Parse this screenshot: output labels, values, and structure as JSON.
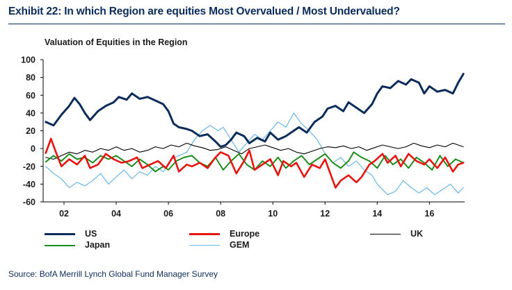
{
  "header": {
    "exhibit_title": "Exhibit 22: In which Region are equities Most Overvalued / Most Undervalued?"
  },
  "footer": {
    "source": "Source: BofA Merrill Lynch Global Fund Manager Survey"
  },
  "chart_data": {
    "type": "line",
    "title": "Valuation of Equities in the Region",
    "xlabel": "",
    "ylabel": "",
    "xlim": [
      2001.2,
      2017.35
    ],
    "ylim": [
      -60,
      100
    ],
    "yticks": [
      "100",
      "80",
      "60",
      "40",
      "20",
      "0",
      "-20",
      "-40",
      "-60"
    ],
    "xticks": [
      {
        "label": "02",
        "value": 2002
      },
      {
        "label": "04",
        "value": 2004
      },
      {
        "label": "06",
        "value": 2006
      },
      {
        "label": "08",
        "value": 2008
      },
      {
        "label": "10",
        "value": 2010
      },
      {
        "label": "12",
        "value": 2012
      },
      {
        "label": "14",
        "value": 2014
      },
      {
        "label": "16",
        "value": 2016
      }
    ],
    "grid": false,
    "legend_position": "bottom",
    "series": [
      {
        "name": "US",
        "color": "#0b2c5a",
        "points": [
          [
            2001.3,
            30
          ],
          [
            2001.6,
            26
          ],
          [
            2001.9,
            38
          ],
          [
            2002.2,
            48
          ],
          [
            2002.4,
            57
          ],
          [
            2002.6,
            50
          ],
          [
            2002.8,
            40
          ],
          [
            2003.0,
            32
          ],
          [
            2003.3,
            42
          ],
          [
            2003.6,
            48
          ],
          [
            2003.9,
            52
          ],
          [
            2004.1,
            58
          ],
          [
            2004.4,
            55
          ],
          [
            2004.6,
            62
          ],
          [
            2004.9,
            56
          ],
          [
            2005.2,
            58
          ],
          [
            2005.5,
            54
          ],
          [
            2005.8,
            50
          ],
          [
            2006.0,
            42
          ],
          [
            2006.2,
            28
          ],
          [
            2006.4,
            24
          ],
          [
            2006.7,
            22
          ],
          [
            2006.9,
            20
          ],
          [
            2007.2,
            14
          ],
          [
            2007.5,
            16
          ],
          [
            2007.8,
            8
          ],
          [
            2008.0,
            2
          ],
          [
            2008.2,
            4
          ],
          [
            2008.4,
            10
          ],
          [
            2008.6,
            18
          ],
          [
            2008.9,
            14
          ],
          [
            2009.1,
            6
          ],
          [
            2009.4,
            12
          ],
          [
            2009.7,
            8
          ],
          [
            2009.9,
            18
          ],
          [
            2010.2,
            10
          ],
          [
            2010.5,
            14
          ],
          [
            2010.8,
            20
          ],
          [
            2011.0,
            24
          ],
          [
            2011.3,
            18
          ],
          [
            2011.6,
            30
          ],
          [
            2011.9,
            36
          ],
          [
            2012.1,
            45
          ],
          [
            2012.4,
            48
          ],
          [
            2012.7,
            42
          ],
          [
            2012.9,
            52
          ],
          [
            2013.2,
            46
          ],
          [
            2013.5,
            40
          ],
          [
            2013.8,
            50
          ],
          [
            2014.0,
            62
          ],
          [
            2014.2,
            70
          ],
          [
            2014.5,
            68
          ],
          [
            2014.8,
            76
          ],
          [
            2015.1,
            72
          ],
          [
            2015.3,
            78
          ],
          [
            2015.6,
            74
          ],
          [
            2015.8,
            62
          ],
          [
            2016.0,
            70
          ],
          [
            2016.3,
            64
          ],
          [
            2016.6,
            66
          ],
          [
            2016.9,
            62
          ],
          [
            2017.1,
            74
          ],
          [
            2017.3,
            84
          ]
        ]
      },
      {
        "name": "Europe",
        "color": "#e8140f",
        "points": [
          [
            2001.3,
            -5
          ],
          [
            2001.5,
            11
          ],
          [
            2001.7,
            -5
          ],
          [
            2001.9,
            -20
          ],
          [
            2002.2,
            -12
          ],
          [
            2002.5,
            -18
          ],
          [
            2002.8,
            -8
          ],
          [
            2003.0,
            -22
          ],
          [
            2003.3,
            -18
          ],
          [
            2003.6,
            -6
          ],
          [
            2003.9,
            -12
          ],
          [
            2004.2,
            -16
          ],
          [
            2004.5,
            -14
          ],
          [
            2004.8,
            -10
          ],
          [
            2005.0,
            -22
          ],
          [
            2005.3,
            -18
          ],
          [
            2005.6,
            -14
          ],
          [
            2005.9,
            -22
          ],
          [
            2006.2,
            -8
          ],
          [
            2006.4,
            -26
          ],
          [
            2006.7,
            -18
          ],
          [
            2006.9,
            -20
          ],
          [
            2007.2,
            -16
          ],
          [
            2007.5,
            -22
          ],
          [
            2007.8,
            -10
          ],
          [
            2008.0,
            -4
          ],
          [
            2008.3,
            -8
          ],
          [
            2008.6,
            -28
          ],
          [
            2008.9,
            -14
          ],
          [
            2009.1,
            -2
          ],
          [
            2009.3,
            -24
          ],
          [
            2009.6,
            -18
          ],
          [
            2009.9,
            -12
          ],
          [
            2010.2,
            -30
          ],
          [
            2010.4,
            -14
          ],
          [
            2010.7,
            -20
          ],
          [
            2010.9,
            -16
          ],
          [
            2011.2,
            -32
          ],
          [
            2011.5,
            -18
          ],
          [
            2011.8,
            -22
          ],
          [
            2012.0,
            -12
          ],
          [
            2012.2,
            -28
          ],
          [
            2012.4,
            -44
          ],
          [
            2012.6,
            -36
          ],
          [
            2012.9,
            -30
          ],
          [
            2013.2,
            -38
          ],
          [
            2013.4,
            -32
          ],
          [
            2013.7,
            -18
          ],
          [
            2013.9,
            -14
          ],
          [
            2014.2,
            -6
          ],
          [
            2014.4,
            -16
          ],
          [
            2014.7,
            -8
          ],
          [
            2014.9,
            -20
          ],
          [
            2015.2,
            -6
          ],
          [
            2015.5,
            -14
          ],
          [
            2015.8,
            -18
          ],
          [
            2016.0,
            -12
          ],
          [
            2016.3,
            -22
          ],
          [
            2016.6,
            -10
          ],
          [
            2016.9,
            -26
          ],
          [
            2017.1,
            -18
          ],
          [
            2017.3,
            -16
          ]
        ]
      },
      {
        "name": "UK",
        "color": "#000000",
        "points": [
          [
            2001.3,
            -10
          ],
          [
            2001.6,
            -12
          ],
          [
            2001.9,
            -8
          ],
          [
            2002.2,
            -4
          ],
          [
            2002.5,
            -6
          ],
          [
            2002.8,
            -2
          ],
          [
            2003.1,
            -4
          ],
          [
            2003.4,
            0
          ],
          [
            2003.7,
            -2
          ],
          [
            2004.0,
            2
          ],
          [
            2004.3,
            -2
          ],
          [
            2004.6,
            0
          ],
          [
            2004.9,
            -4
          ],
          [
            2005.2,
            -2
          ],
          [
            2005.5,
            2
          ],
          [
            2005.8,
            0
          ],
          [
            2006.1,
            4
          ],
          [
            2006.4,
            2
          ],
          [
            2006.7,
            6
          ],
          [
            2007.0,
            3
          ],
          [
            2007.3,
            1
          ],
          [
            2007.6,
            -2
          ],
          [
            2007.9,
            -1
          ],
          [
            2008.2,
            2
          ],
          [
            2008.5,
            -2
          ],
          [
            2008.8,
            -6
          ],
          [
            2009.1,
            0
          ],
          [
            2009.4,
            2
          ],
          [
            2009.7,
            4
          ],
          [
            2010.0,
            1
          ],
          [
            2010.3,
            -2
          ],
          [
            2010.6,
            0
          ],
          [
            2010.9,
            -4
          ],
          [
            2011.2,
            -6
          ],
          [
            2011.5,
            -3
          ],
          [
            2011.8,
            0
          ],
          [
            2012.1,
            2
          ],
          [
            2012.4,
            1
          ],
          [
            2012.7,
            3
          ],
          [
            2013.0,
            0
          ],
          [
            2013.3,
            2
          ],
          [
            2013.6,
            -2
          ],
          [
            2013.9,
            1
          ],
          [
            2014.2,
            4
          ],
          [
            2014.5,
            2
          ],
          [
            2014.8,
            0
          ],
          [
            2015.1,
            2
          ],
          [
            2015.4,
            6
          ],
          [
            2015.7,
            3
          ],
          [
            2016.0,
            1
          ],
          [
            2016.3,
            4
          ],
          [
            2016.6,
            2
          ],
          [
            2016.9,
            6
          ],
          [
            2017.1,
            4
          ],
          [
            2017.3,
            2
          ]
        ]
      },
      {
        "name": "Japan",
        "color": "#1a8c1a",
        "points": [
          [
            2001.3,
            -15
          ],
          [
            2001.6,
            -8
          ],
          [
            2001.9,
            -14
          ],
          [
            2002.2,
            -6
          ],
          [
            2002.5,
            -12
          ],
          [
            2002.8,
            -10
          ],
          [
            2003.1,
            -16
          ],
          [
            2003.4,
            -8
          ],
          [
            2003.7,
            -12
          ],
          [
            2004.0,
            -8
          ],
          [
            2004.3,
            -14
          ],
          [
            2004.6,
            -20
          ],
          [
            2004.9,
            -12
          ],
          [
            2005.2,
            -18
          ],
          [
            2005.5,
            -26
          ],
          [
            2005.8,
            -20
          ],
          [
            2006.0,
            -24
          ],
          [
            2006.3,
            -14
          ],
          [
            2006.6,
            -10
          ],
          [
            2006.9,
            -8
          ],
          [
            2007.2,
            -16
          ],
          [
            2007.5,
            -20
          ],
          [
            2007.8,
            -10
          ],
          [
            2008.1,
            -24
          ],
          [
            2008.4,
            -14
          ],
          [
            2008.7,
            -6
          ],
          [
            2009.0,
            -18
          ],
          [
            2009.3,
            -24
          ],
          [
            2009.6,
            -14
          ],
          [
            2009.9,
            -20
          ],
          [
            2010.2,
            -10
          ],
          [
            2010.5,
            -22
          ],
          [
            2010.8,
            -14
          ],
          [
            2011.1,
            -8
          ],
          [
            2011.4,
            -18
          ],
          [
            2011.7,
            -12
          ],
          [
            2012.0,
            -6
          ],
          [
            2012.3,
            -16
          ],
          [
            2012.6,
            -22
          ],
          [
            2012.9,
            -14
          ],
          [
            2013.1,
            -4
          ],
          [
            2013.4,
            -10
          ],
          [
            2013.7,
            -14
          ],
          [
            2014.0,
            -22
          ],
          [
            2014.3,
            -8
          ],
          [
            2014.6,
            -18
          ],
          [
            2014.9,
            -12
          ],
          [
            2015.2,
            -22
          ],
          [
            2015.5,
            -10
          ],
          [
            2015.8,
            -16
          ],
          [
            2016.1,
            -24
          ],
          [
            2016.4,
            -8
          ],
          [
            2016.7,
            -20
          ],
          [
            2017.0,
            -12
          ],
          [
            2017.3,
            -16
          ]
        ]
      },
      {
        "name": "GEM",
        "color": "#6bb6e6",
        "points": [
          [
            2001.3,
            -20
          ],
          [
            2001.6,
            -28
          ],
          [
            2001.9,
            -34
          ],
          [
            2002.2,
            -44
          ],
          [
            2002.5,
            -38
          ],
          [
            2002.8,
            -42
          ],
          [
            2003.1,
            -36
          ],
          [
            2003.4,
            -28
          ],
          [
            2003.7,
            -40
          ],
          [
            2004.0,
            -32
          ],
          [
            2004.3,
            -24
          ],
          [
            2004.6,
            -34
          ],
          [
            2004.9,
            -26
          ],
          [
            2005.2,
            -30
          ],
          [
            2005.5,
            -20
          ],
          [
            2005.8,
            -26
          ],
          [
            2006.1,
            -12
          ],
          [
            2006.4,
            -8
          ],
          [
            2006.7,
            -4
          ],
          [
            2007.0,
            10
          ],
          [
            2007.3,
            20
          ],
          [
            2007.6,
            26
          ],
          [
            2007.9,
            20
          ],
          [
            2008.1,
            24
          ],
          [
            2008.4,
            10
          ],
          [
            2008.7,
            -4
          ],
          [
            2009.0,
            6
          ],
          [
            2009.3,
            16
          ],
          [
            2009.6,
            10
          ],
          [
            2009.9,
            20
          ],
          [
            2010.2,
            30
          ],
          [
            2010.5,
            24
          ],
          [
            2010.8,
            40
          ],
          [
            2011.1,
            28
          ],
          [
            2011.4,
            20
          ],
          [
            2011.7,
            10
          ],
          [
            2012.0,
            -6
          ],
          [
            2012.3,
            -16
          ],
          [
            2012.6,
            -10
          ],
          [
            2012.9,
            -20
          ],
          [
            2013.2,
            -14
          ],
          [
            2013.5,
            -24
          ],
          [
            2013.8,
            -30
          ],
          [
            2014.0,
            -40
          ],
          [
            2014.2,
            -46
          ],
          [
            2014.4,
            -52
          ],
          [
            2014.7,
            -48
          ],
          [
            2015.0,
            -36
          ],
          [
            2015.3,
            -44
          ],
          [
            2015.6,
            -50
          ],
          [
            2015.9,
            -44
          ],
          [
            2016.2,
            -52
          ],
          [
            2016.5,
            -46
          ],
          [
            2016.8,
            -40
          ],
          [
            2017.1,
            -50
          ],
          [
            2017.3,
            -44
          ]
        ]
      }
    ]
  }
}
